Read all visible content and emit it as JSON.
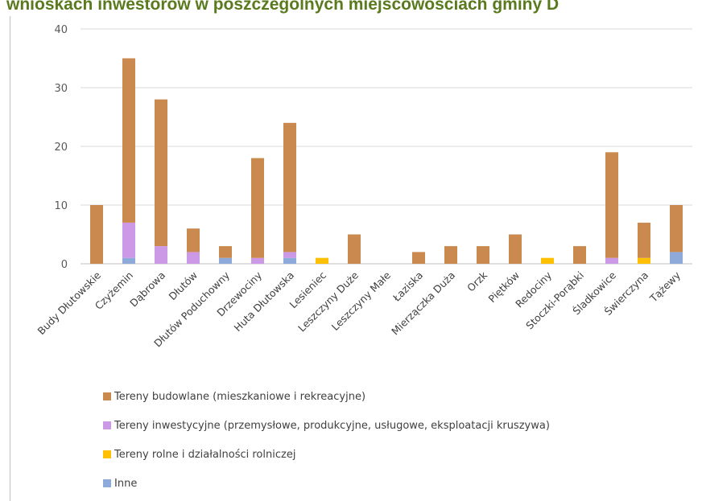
{
  "page_title": "wnioskach inwestorów w poszczególnych miejscowościach gminy D",
  "chart_data": {
    "type": "bar",
    "stacked": true,
    "title": "",
    "xlabel": "",
    "ylabel": "",
    "ylim": [
      0,
      40
    ],
    "yticks": [
      0,
      10,
      20,
      30,
      40
    ],
    "grid": true,
    "legend_position": "bottom",
    "categories": [
      "Budy Dłutowskie",
      "Czyżemin",
      "Dąbrowa",
      "Dłutów",
      "Dłutów Poduchowny",
      "Drzewociny",
      "Huta Dłutowska",
      "Lesieniec",
      "Leszczyny Duże",
      "Leszczyny Małe",
      "Łaziska",
      "Mierzączka Duża",
      "Orzk",
      "Piętków",
      "Redociny",
      "Stoczki-Porąbki",
      "Śladkowice",
      "Świerczyna",
      "Tążewy"
    ],
    "series": [
      {
        "name": "Inne",
        "color": "#8eaadb",
        "values": [
          0,
          1,
          0,
          0,
          1,
          0,
          1,
          0,
          0,
          0,
          0,
          0,
          0,
          0,
          0,
          0,
          0,
          0,
          2
        ]
      },
      {
        "name": "Tereny rolne i działalności rolniczej",
        "color": "#ffc000",
        "values": [
          0,
          0,
          0,
          0,
          0,
          0,
          0,
          1,
          0,
          0,
          0,
          0,
          0,
          0,
          1,
          0,
          0,
          1,
          0
        ]
      },
      {
        "name": "Tereny inwestycyjne (przemysłowe, produkcyjne, usługowe, eksploatacji kruszywa)",
        "color": "#cc99e6",
        "values": [
          0,
          6,
          3,
          2,
          0,
          1,
          1,
          0,
          0,
          0,
          0,
          0,
          0,
          0,
          0,
          0,
          1,
          0,
          0
        ]
      },
      {
        "name": "Tereny budowlane (mieszkaniowe i rekreacyjne)",
        "color": "#c9894f",
        "values": [
          10,
          28,
          25,
          4,
          2,
          17,
          22,
          0,
          5,
          0,
          2,
          3,
          3,
          5,
          0,
          3,
          18,
          6,
          8
        ]
      }
    ],
    "legend_order": [
      3,
      2,
      1,
      0
    ]
  }
}
